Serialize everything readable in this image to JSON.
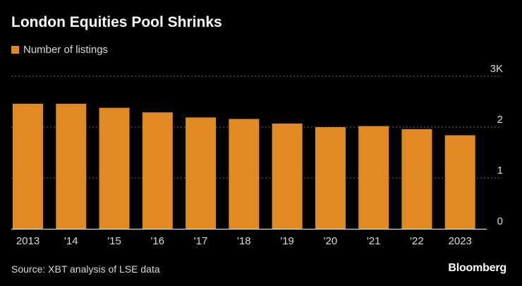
{
  "chart_data": {
    "type": "bar",
    "title": "London Equities Pool Shrinks",
    "legend": [
      "Number of listings"
    ],
    "categories": [
      "2013",
      "'14",
      "'15",
      "'16",
      "'17",
      "'18",
      "'19",
      "'20",
      "'21",
      "'22",
      "2023"
    ],
    "series": [
      {
        "name": "Number of listings",
        "values": [
          2.46,
          2.46,
          2.38,
          2.29,
          2.19,
          2.16,
          2.07,
          2.0,
          2.02,
          1.96,
          1.84
        ]
      }
    ],
    "ylim": [
      0,
      3
    ],
    "yticks": [
      0,
      1,
      2,
      3
    ],
    "ytick_labels": [
      "0",
      "1",
      "2",
      "3K"
    ],
    "y_axis_position": "right",
    "grid": true,
    "xlabel": "",
    "ylabel": "",
    "colors": {
      "bar": "#e08a24",
      "grid": "#6b6b6b",
      "axis": "#ffffff"
    }
  },
  "footer": {
    "source": "Source: XBT analysis of LSE data",
    "brand": "Bloomberg"
  }
}
